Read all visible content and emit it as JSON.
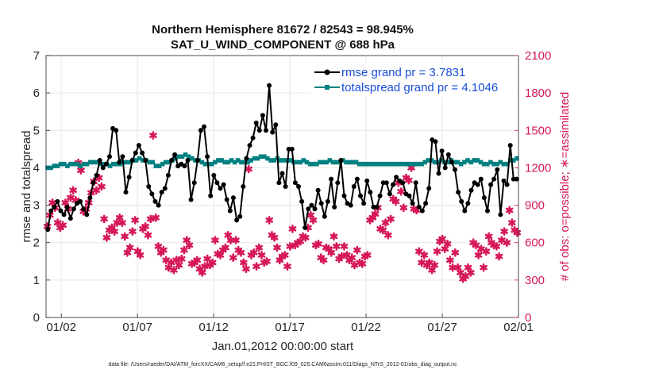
{
  "chart_data": {
    "type": "line",
    "title_line1": "Northern Hemisphere 81672 / 82543 = 98.945%",
    "title_line2": "SAT_U_WIND_COMPONENT @ 688 hPa",
    "xlabel": "Jan.01,2012 00:00:00 start",
    "ylabel_left": "rmse and totalspread",
    "ylabel_right": "# of obs: o=possible; ∗=assimilated",
    "footer": "data file: /Users/raeder/DAI/ATM_forcXX/CAM6_setup/f.e21.FHIST_BGC.f09_025.CAM6assim.011/Diags_NTrS_2012-01/obs_diag_output.nc",
    "xlim": [
      0.5,
      31.5
    ],
    "ylim_left": [
      0,
      7
    ],
    "ylim_right": [
      0,
      2100
    ],
    "x_tick_values": [
      1.5,
      6.5,
      11.5,
      16.5,
      21.5,
      26.5,
      31.5
    ],
    "x_tick_labels": [
      "01/02",
      "01/07",
      "01/12",
      "01/17",
      "01/22",
      "01/27",
      "02/01"
    ],
    "y_left_ticks": [
      "0",
      "1",
      "2",
      "3",
      "4",
      "5",
      "6",
      "7"
    ],
    "y_right_ticks": [
      "0",
      "300",
      "600",
      "900",
      "1200",
      "1500",
      "1800",
      "2100"
    ],
    "colors": {
      "rmse": "#000000",
      "spread": "#008080",
      "obs": "#d6185a",
      "legend_text": "#1a4fd6"
    },
    "series": [
      {
        "name": "rmse grand pr = 3.7831",
        "values": [
          2.35,
          2.85,
          2.95,
          3.1,
          2.85,
          2.75,
          2.95,
          2.65,
          2.9,
          3.05,
          3.1,
          2.9,
          2.75,
          3.2,
          3.6,
          3.8,
          4.2,
          4.0,
          4.1,
          4.3,
          5.05,
          5.0,
          4.15,
          4.3,
          3.35,
          3.75,
          4.2,
          4.4,
          4.6,
          4.4,
          4.2,
          3.5,
          3.3,
          3.1,
          3.0,
          3.35,
          3.45,
          3.8,
          4.2,
          4.35,
          4.05,
          4.1,
          4.05,
          4.2,
          3.15,
          3.6,
          4.2,
          5.0,
          5.1,
          4.3,
          3.25,
          3.8,
          3.6,
          3.45,
          3.55,
          3.15,
          2.85,
          3.2,
          2.6,
          2.7,
          3.5,
          4.25,
          4.6,
          4.8,
          5.2,
          5.0,
          5.4,
          5.0,
          6.2,
          4.95,
          5.15,
          3.6,
          3.85,
          3.5,
          4.5,
          4.5,
          3.6,
          3.5,
          3.1,
          2.4,
          2.9,
          3.0,
          2.9,
          3.4,
          3.05,
          2.7,
          3.1,
          3.7,
          2.95,
          3.6,
          4.2,
          3.25,
          3.05,
          3.0,
          3.5,
          3.7,
          3.25,
          3.05,
          3.65,
          3.35,
          2.95,
          2.95,
          3.25,
          3.6,
          3.6,
          3.3,
          3.55,
          3.75,
          3.65,
          3.6,
          3.3,
          3.25,
          3.05,
          3.6,
          2.95,
          2.85,
          3.05,
          3.45,
          4.75,
          4.7,
          3.85,
          4.45,
          4.0,
          4.35,
          4.15,
          3.95,
          3.35,
          3.1,
          2.85,
          3.05,
          3.4,
          3.6,
          3.55,
          3.7,
          3.2,
          2.85,
          3.55,
          3.7,
          3.95,
          2.75,
          3.65,
          3.55,
          4.6,
          3.7,
          3.7
        ]
      },
      {
        "name": "totalspread grand pr = 4.1046",
        "values": [
          4.0,
          4.0,
          4.05,
          4.05,
          4.1,
          4.1,
          4.05,
          4.1,
          4.1,
          4.1,
          4.05,
          4.1,
          4.1,
          4.15,
          4.15,
          4.15,
          4.1,
          4.1,
          4.1,
          4.05,
          4.1,
          4.1,
          4.1,
          4.15,
          4.15,
          4.15,
          4.2,
          4.2,
          4.25,
          4.2,
          4.2,
          4.15,
          4.15,
          4.05,
          4.05,
          4.1,
          4.15,
          4.15,
          4.2,
          4.25,
          4.3,
          4.3,
          4.35,
          4.3,
          4.25,
          4.2,
          4.2,
          4.15,
          4.1,
          4.1,
          4.1,
          4.15,
          4.2,
          4.2,
          4.15,
          4.15,
          4.2,
          4.15,
          4.2,
          4.15,
          4.15,
          4.15,
          4.2,
          4.25,
          4.25,
          4.3,
          4.3,
          4.25,
          4.2,
          4.2,
          4.25,
          4.2,
          4.2,
          4.2,
          4.2,
          4.15,
          4.15,
          4.15,
          4.2,
          4.15,
          4.1,
          4.1,
          4.1,
          4.15,
          4.15,
          4.15,
          4.2,
          4.15,
          4.15,
          4.15,
          4.2,
          4.15,
          4.15,
          4.15,
          4.15,
          4.1,
          4.1,
          4.1,
          4.1,
          4.1,
          4.1,
          4.1,
          4.1,
          4.1,
          4.1,
          4.1,
          4.1,
          4.1,
          4.1,
          4.1,
          4.1,
          4.1,
          4.1,
          4.1,
          4.1,
          4.15,
          4.2,
          4.2,
          4.15,
          4.15,
          4.2,
          4.15,
          4.15,
          4.2,
          4.15,
          4.15,
          4.1,
          4.15,
          4.2,
          4.15,
          4.2,
          4.2,
          4.15,
          4.1,
          4.1,
          4.15,
          4.1,
          4.1,
          4.15,
          4.1,
          4.1,
          4.2,
          4.2,
          4.25
        ]
      },
      {
        "name": "# of obs assimilated",
        "values": [
          730,
          820,
          920,
          880,
          760,
          720,
          740,
          920,
          870,
          960,
          1020,
          940,
          1240,
          1180,
          850,
          870,
          920,
          1000,
          1090,
          1020,
          1120,
          1050,
          790,
          640,
          700,
          720,
          690,
          760,
          800,
          760,
          650,
          520,
          560,
          690,
          780,
          530,
          500,
          710,
          730,
          660,
          790,
          1460,
          800,
          570,
          520,
          540,
          460,
          400,
          440,
          380,
          460,
          420,
          470,
          540,
          620,
          580,
          430,
          440,
          460,
          390,
          360,
          410,
          470,
          420,
          440,
          620,
          510,
          500,
          540,
          560,
          660,
          620,
          480,
          620,
          540,
          520,
          440,
          390,
          1190,
          500,
          520,
          410,
          560,
          500,
          440,
          450,
          780,
          660,
          640,
          560,
          460,
          490,
          500,
          410,
          570,
          710,
          580,
          600,
          610,
          650,
          640,
          720,
          820,
          780,
          580,
          590,
          480,
          460,
          560,
          550,
          520,
          650,
          570,
          470,
          490,
          570,
          500,
          460,
          480,
          420,
          540,
          440,
          430,
          490,
          500,
          780,
          800,
          830,
          880,
          710,
          700,
          760,
          660,
          790,
          950,
          930,
          1080,
          1010,
          880,
          1120,
          1100,
          1200,
          870,
          860,
          530,
          440,
          500,
          420,
          440,
          380,
          420,
          530,
          610,
          630,
          550,
          590,
          460,
          400,
          520,
          400,
          360,
          310,
          330,
          400,
          360,
          600,
          580,
          500,
          550,
          400,
          530,
          650,
          600,
          580,
          570,
          490,
          620,
          690,
          600,
          860,
          760,
          700,
          680
        ]
      },
      {
        "name": "# of obs possible",
        "values": [
          null,
          null,
          null,
          null,
          null,
          null,
          null,
          null,
          null,
          null,
          null,
          null,
          null,
          null,
          null,
          null,
          null,
          null,
          null,
          null,
          null,
          null,
          null,
          null,
          null,
          null,
          null,
          null,
          null,
          null,
          null,
          null,
          null,
          null,
          null,
          null,
          null,
          null,
          null,
          null,
          null,
          null,
          null,
          null,
          null,
          null,
          null,
          null,
          null,
          null,
          null,
          null,
          null,
          null,
          null,
          null,
          null,
          null,
          null,
          null,
          null,
          null,
          null,
          null,
          null,
          null,
          null,
          null,
          null,
          null,
          null,
          null,
          null,
          null,
          null,
          null,
          null,
          null,
          null,
          null,
          null,
          null,
          null,
          null,
          null,
          null,
          null,
          null,
          null,
          null,
          null,
          null,
          null,
          null,
          null,
          null,
          null,
          null,
          null,
          null,
          null,
          null,
          null,
          null,
          null,
          null,
          null,
          null,
          null,
          null,
          null,
          null,
          null,
          null,
          null,
          null,
          null,
          null,
          null,
          null,
          null,
          null,
          null,
          null,
          null,
          null,
          null,
          null,
          null,
          null,
          null,
          null,
          null,
          null,
          null,
          null,
          null,
          null,
          null,
          null,
          null,
          null,
          null,
          null,
          null,
          null,
          null,
          null,
          null,
          null,
          null,
          null,
          null,
          null,
          null,
          null,
          null,
          null,
          null,
          null,
          null,
          null,
          null,
          null,
          null,
          null,
          null,
          null,
          null,
          null,
          null,
          null,
          null,
          null,
          null,
          null,
          null,
          null,
          null,
          null,
          null,
          null,
          null,
          null,
          null,
          null
        ]
      }
    ]
  }
}
